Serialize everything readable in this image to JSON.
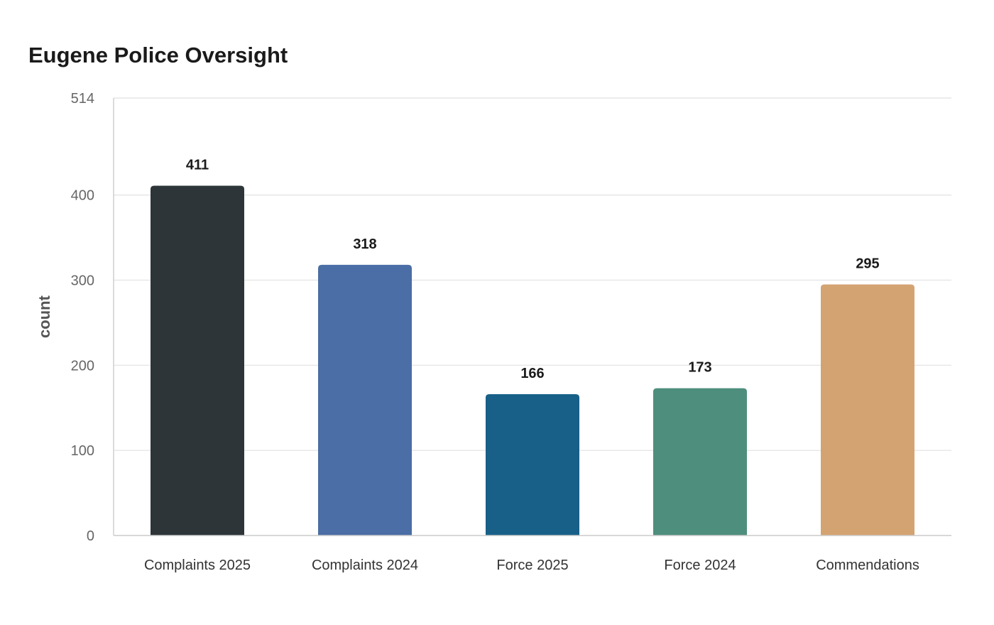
{
  "chart_data": {
    "type": "bar",
    "title": "Eugene Police Oversight",
    "xlabel": "",
    "ylabel": "count",
    "categories": [
      "Complaints 2025",
      "Complaints 2024",
      "Force 2025",
      "Force 2024",
      "Commendations"
    ],
    "values": [
      411,
      318,
      166,
      173,
      295
    ],
    "colors": [
      "#2d3538",
      "#4a6ea5",
      "#186088",
      "#4e8e7c",
      "#d4a372"
    ],
    "ylim": [
      0,
      514
    ],
    "yticks": [
      0,
      100,
      200,
      300,
      400,
      514
    ],
    "grid": true,
    "legend": "none",
    "data_labels": true
  }
}
